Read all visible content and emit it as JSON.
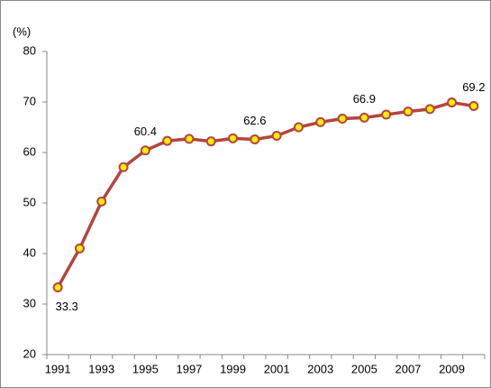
{
  "chart_data": {
    "type": "line",
    "y_label": "(%)",
    "categories": [
      "1991",
      null,
      "1993",
      null,
      "1995",
      null,
      "1997",
      null,
      "1999",
      null,
      "2001",
      null,
      "2003",
      null,
      "2005",
      null,
      "2007",
      null,
      "2009",
      null
    ],
    "series": [
      {
        "color": "#b5443f",
        "values": [
          33.3,
          41.0,
          50.3,
          57.1,
          60.4,
          62.3,
          62.7,
          62.2,
          62.8,
          62.6,
          63.3,
          65.0,
          66.0,
          66.7,
          66.9,
          67.5,
          68.1,
          68.6,
          69.9,
          69.2
        ],
        "value_labels": [
          "33.3",
          null,
          null,
          null,
          "60.4",
          null,
          null,
          null,
          null,
          "62.6",
          null,
          null,
          null,
          null,
          "66.9",
          null,
          null,
          null,
          null,
          "69.2"
        ]
      }
    ],
    "marker_color": "#ffee00",
    "ylim": [
      20,
      80
    ],
    "yticks": [
      20,
      30,
      40,
      50,
      60,
      70,
      80
    ],
    "grid": false
  }
}
